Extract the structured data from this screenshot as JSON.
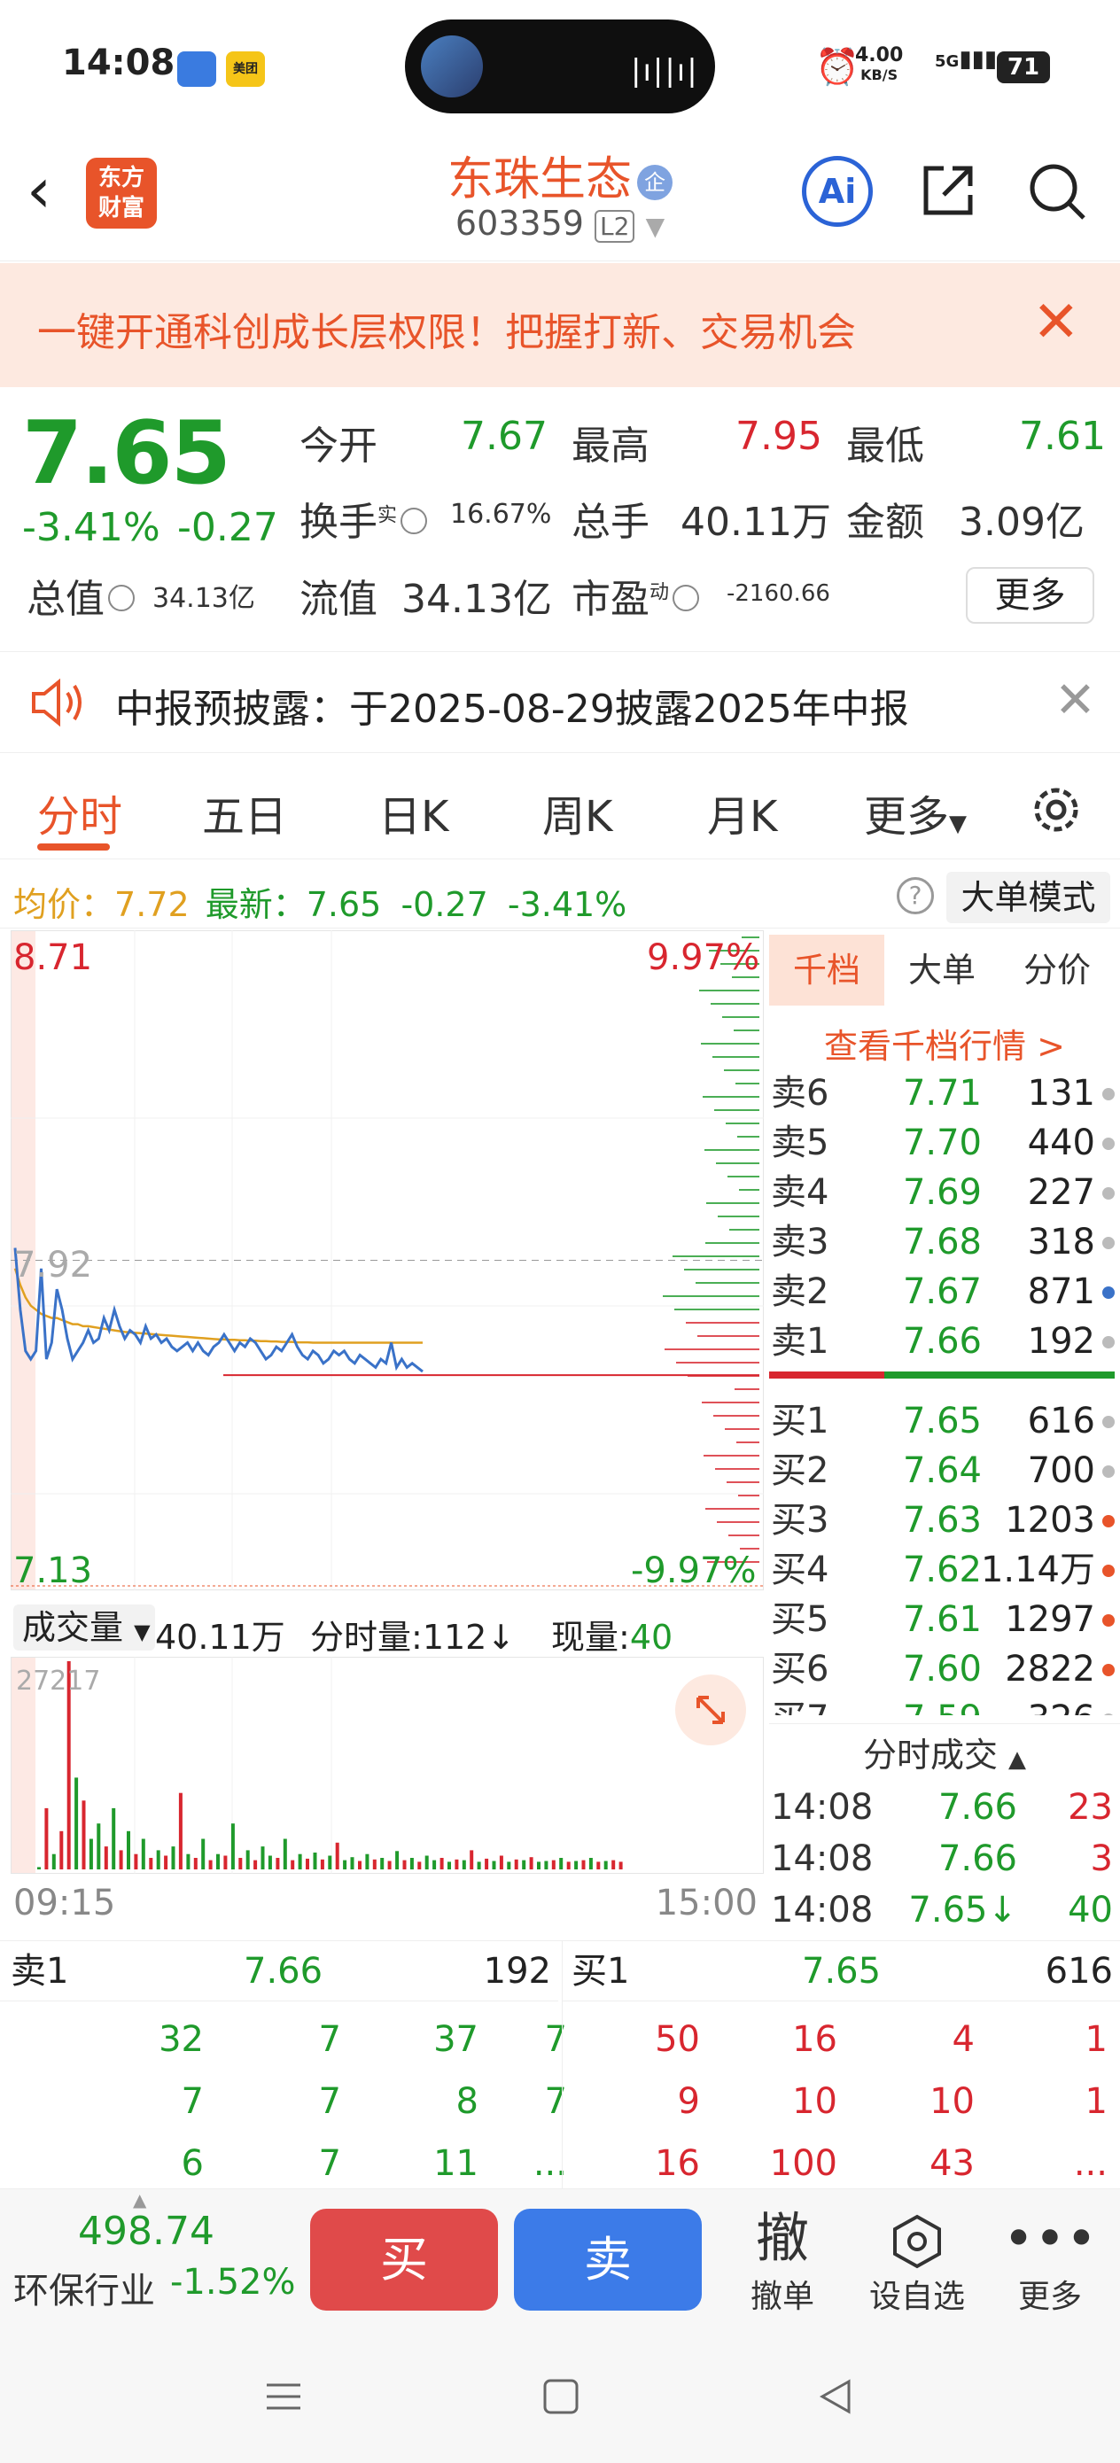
{
  "status_bar": {
    "time": "14:08",
    "meituan_label": "美团",
    "speed_value": "4.00",
    "speed_unit": "KB/S",
    "network": "5G",
    "battery": "71"
  },
  "header": {
    "logo_line1": "东方",
    "logo_line2": "财富",
    "stock_name": "东珠生态",
    "enterprise_badge": "企",
    "stock_code": "603359",
    "level_badge": "L2",
    "ai_label": "Ai"
  },
  "promo": {
    "text": "一键开通科创成长层权限！把握打新、交易机会"
  },
  "quote": {
    "price": "7.65",
    "change_pct": "-3.41%",
    "change": "-0.27",
    "open_label": "今开",
    "open": "7.67",
    "high_label": "最高",
    "high": "7.95",
    "low_label": "最低",
    "low": "7.61",
    "turnover_label": "换手",
    "turnover_sup": "实",
    "turnover": "16.67%",
    "volume_label": "总手",
    "volume": "40.11万",
    "amount_label": "金额",
    "amount": "3.09亿",
    "mktcap_label": "总值",
    "mktcap": "34.13亿",
    "float_label": "流值",
    "float_cap": "34.13亿",
    "pe_label": "市盈",
    "pe_sup": "动",
    "pe": "-2160.66",
    "more_label": "更多"
  },
  "notice": {
    "text": "中报预披露：于2025-08-29披露2025年中报"
  },
  "tabs": [
    "分时",
    "五日",
    "日K",
    "周K",
    "月K",
    "更多"
  ],
  "info_line": {
    "avg_label": "均价：",
    "avg": "7.72",
    "latest_label": "最新：",
    "latest": "7.65",
    "change": "-0.27",
    "change_pct": "-3.41%",
    "big_order_mode": "大单模式"
  },
  "colors": {
    "accent": "#e8542a",
    "up": "#d8262f",
    "down": "#1f9a2b",
    "avg_line": "#e0a020",
    "price_line": "#3a72c8",
    "buy_button": "#e04a4a",
    "sell_button": "#3c7be8"
  },
  "chart_data": [
    {
      "type": "line",
      "title": "",
      "ylim": [
        7.13,
        8.71
      ],
      "y_top_label": "8.71",
      "y_bottom_label": "7.13",
      "y_ref_label": "7.92",
      "pct_top_label": "9.97%",
      "pct_bottom_label": "-9.97%",
      "ref_price": 7.92,
      "series": [
        {
          "name": "",
          "values": [
            7.95,
            7.8,
            7.7,
            7.68,
            7.7,
            7.9,
            7.68,
            7.72,
            7.85,
            7.8,
            7.73,
            7.68,
            7.7,
            7.72,
            7.75,
            7.72,
            7.73,
            7.78,
            7.75,
            7.8,
            7.76,
            7.73,
            7.75,
            7.74,
            7.72,
            7.76,
            7.73,
            7.74,
            7.72,
            7.73,
            7.71,
            7.7,
            7.71,
            7.72,
            7.7,
            7.72,
            7.7,
            7.69,
            7.71,
            7.72,
            7.74,
            7.72,
            7.7,
            7.72,
            7.71,
            7.73,
            7.72,
            7.7,
            7.68,
            7.69,
            7.71,
            7.7,
            7.72,
            7.74,
            7.71,
            7.69,
            7.68,
            7.7,
            7.69,
            7.67,
            7.68,
            7.7,
            7.69,
            7.7,
            7.68,
            7.67,
            7.69,
            7.68,
            7.67,
            7.66,
            7.68,
            7.67,
            7.72,
            7.66,
            7.68,
            7.66,
            7.67,
            7.66,
            7.65
          ]
        },
        {
          "name": "",
          "values": [
            7.9,
            7.86,
            7.83,
            7.81,
            7.8,
            7.79,
            7.785,
            7.78,
            7.78,
            7.775,
            7.77,
            7.765,
            7.765,
            7.76,
            7.76,
            7.758,
            7.756,
            7.754,
            7.752,
            7.75,
            7.748,
            7.746,
            7.745,
            7.744,
            7.743,
            7.742,
            7.741,
            7.74,
            7.739,
            7.738,
            7.737,
            7.736,
            7.735,
            7.734,
            7.733,
            7.732,
            7.731,
            7.73,
            7.729,
            7.728,
            7.728,
            7.727,
            7.727,
            7.726,
            7.726,
            7.725,
            7.725,
            7.724,
            7.724,
            7.723,
            7.723,
            7.722,
            7.722,
            7.722,
            7.721,
            7.721,
            7.721,
            7.72,
            7.72,
            7.72,
            7.72,
            7.72,
            7.72,
            7.72,
            7.72,
            7.72,
            7.72,
            7.72,
            7.72,
            7.72,
            7.72,
            7.72,
            7.72,
            7.72,
            7.72,
            7.72,
            7.72,
            7.72,
            7.72
          ]
        }
      ],
      "x_start_label": "09:15",
      "x_end_label": "15:00"
    },
    {
      "type": "bar",
      "title": "",
      "ymax_label": "27217",
      "ymax": 27217,
      "up_color": "#d8262f",
      "down_color": "#1f9a2b",
      "values": [
        300,
        8000,
        2000,
        5000,
        27217,
        12000,
        9000,
        4000,
        6000,
        3000,
        8000,
        2500,
        5000,
        2000,
        4000,
        1500,
        2500,
        1800,
        3000,
        10000,
        2000,
        1500,
        4000,
        1200,
        2000,
        1800,
        6000,
        1500,
        2500,
        1200,
        3000,
        1800,
        1500,
        4000,
        1200,
        2000,
        1400,
        2200,
        1300,
        1800,
        3500,
        1200,
        1600,
        1100,
        2000,
        1300,
        1500,
        1100,
        2400,
        1200,
        1500,
        1000,
        1800,
        1200,
        1500,
        1000,
        1300,
        1200,
        2500,
        1000,
        1400,
        1100,
        1800,
        1000,
        1300,
        1200,
        1600,
        1000,
        1100,
        1200,
        1500,
        1000,
        1100,
        1200,
        1500,
        1000,
        1100,
        1200,
        1000
      ],
      "directions": [
        "d",
        "r",
        "d",
        "r",
        "r",
        "d",
        "r",
        "d",
        "d",
        "r",
        "d",
        "r",
        "d",
        "r",
        "d",
        "r",
        "d",
        "r",
        "d",
        "r",
        "d",
        "r",
        "d",
        "r",
        "d",
        "r",
        "d",
        "r",
        "d",
        "r",
        "d",
        "d",
        "r",
        "d",
        "r",
        "d",
        "r",
        "d",
        "r",
        "d",
        "r",
        "d",
        "d",
        "r",
        "d",
        "r",
        "d",
        "r",
        "d",
        "r",
        "d",
        "r",
        "d",
        "d",
        "r",
        "d",
        "r",
        "d",
        "r",
        "d",
        "r",
        "d",
        "r",
        "d",
        "r",
        "d",
        "r",
        "d",
        "d",
        "r",
        "d",
        "r",
        "d",
        "r",
        "d",
        "r",
        "d",
        "r",
        "r"
      ]
    }
  ],
  "volume_header": {
    "selector": "成交量",
    "total": "40.11万",
    "minute_label": "分时量:",
    "minute_value": "112",
    "current_label": "现量:",
    "current_value": "40"
  },
  "order_book": {
    "tabs": [
      "千档",
      "大单",
      "分价"
    ],
    "link": "查看千档行情 >",
    "asks": [
      {
        "name": "卖6",
        "price": "7.71",
        "vol": "131",
        "dot": "#bbbbbb"
      },
      {
        "name": "卖5",
        "price": "7.70",
        "vol": "440",
        "dot": "#bbbbbb"
      },
      {
        "name": "卖4",
        "price": "7.69",
        "vol": "227",
        "dot": "#bbbbbb"
      },
      {
        "name": "卖3",
        "price": "7.68",
        "vol": "318",
        "dot": "#bbbbbb"
      },
      {
        "name": "卖2",
        "price": "7.67",
        "vol": "871",
        "dot": "#3a72c8"
      },
      {
        "name": "卖1",
        "price": "7.66",
        "vol": "192",
        "dot": "#bbbbbb"
      }
    ],
    "bids": [
      {
        "name": "买1",
        "price": "7.65",
        "vol": "616",
        "dot": "#bbbbbb"
      },
      {
        "name": "买2",
        "price": "7.64",
        "vol": "700",
        "dot": "#bbbbbb"
      },
      {
        "name": "买3",
        "price": "7.63",
        "vol": "1203",
        "dot": "#e8542a"
      },
      {
        "name": "买4",
        "price": "7.62",
        "vol": "1.14万",
        "dot": "#e8542a"
      },
      {
        "name": "买5",
        "price": "7.61",
        "vol": "1297",
        "dot": "#e8542a"
      },
      {
        "name": "买6",
        "price": "7.60",
        "vol": "2822",
        "dot": "#e8542a"
      },
      {
        "name": "买7",
        "price": "7.59",
        "vol": "326",
        "dot": "#bbbbbb"
      }
    ]
  },
  "trades": {
    "title": "分时成交",
    "rows": [
      {
        "time": "14:08",
        "price": "7.66",
        "vol": "23",
        "dir": "up"
      },
      {
        "time": "14:08",
        "price": "7.66",
        "vol": "3",
        "dir": "up"
      },
      {
        "time": "14:08",
        "price": "7.65↓",
        "vol": "40",
        "dir": "down"
      }
    ]
  },
  "detail": {
    "ask_label": "卖1",
    "ask_price": "7.66",
    "ask_vol": "192",
    "bid_label": "买1",
    "bid_price": "7.65",
    "bid_vol": "616",
    "ask_rows": [
      [
        "32",
        "7",
        "37",
        "7"
      ],
      [
        "7",
        "7",
        "8",
        "7"
      ],
      [
        "6",
        "7",
        "11",
        "..."
      ]
    ],
    "bid_rows": [
      [
        "50",
        "16",
        "4",
        "1"
      ],
      [
        "9",
        "10",
        "10",
        "1"
      ],
      [
        "16",
        "100",
        "43",
        "..."
      ]
    ]
  },
  "action_bar": {
    "index_value": "498.74",
    "index_name": "环保行业",
    "index_pct": "-1.52%",
    "buy": "买",
    "sell": "卖",
    "cancel_icon": "撤",
    "cancel": "撤单",
    "watch": "设自选",
    "more": "更多"
  }
}
